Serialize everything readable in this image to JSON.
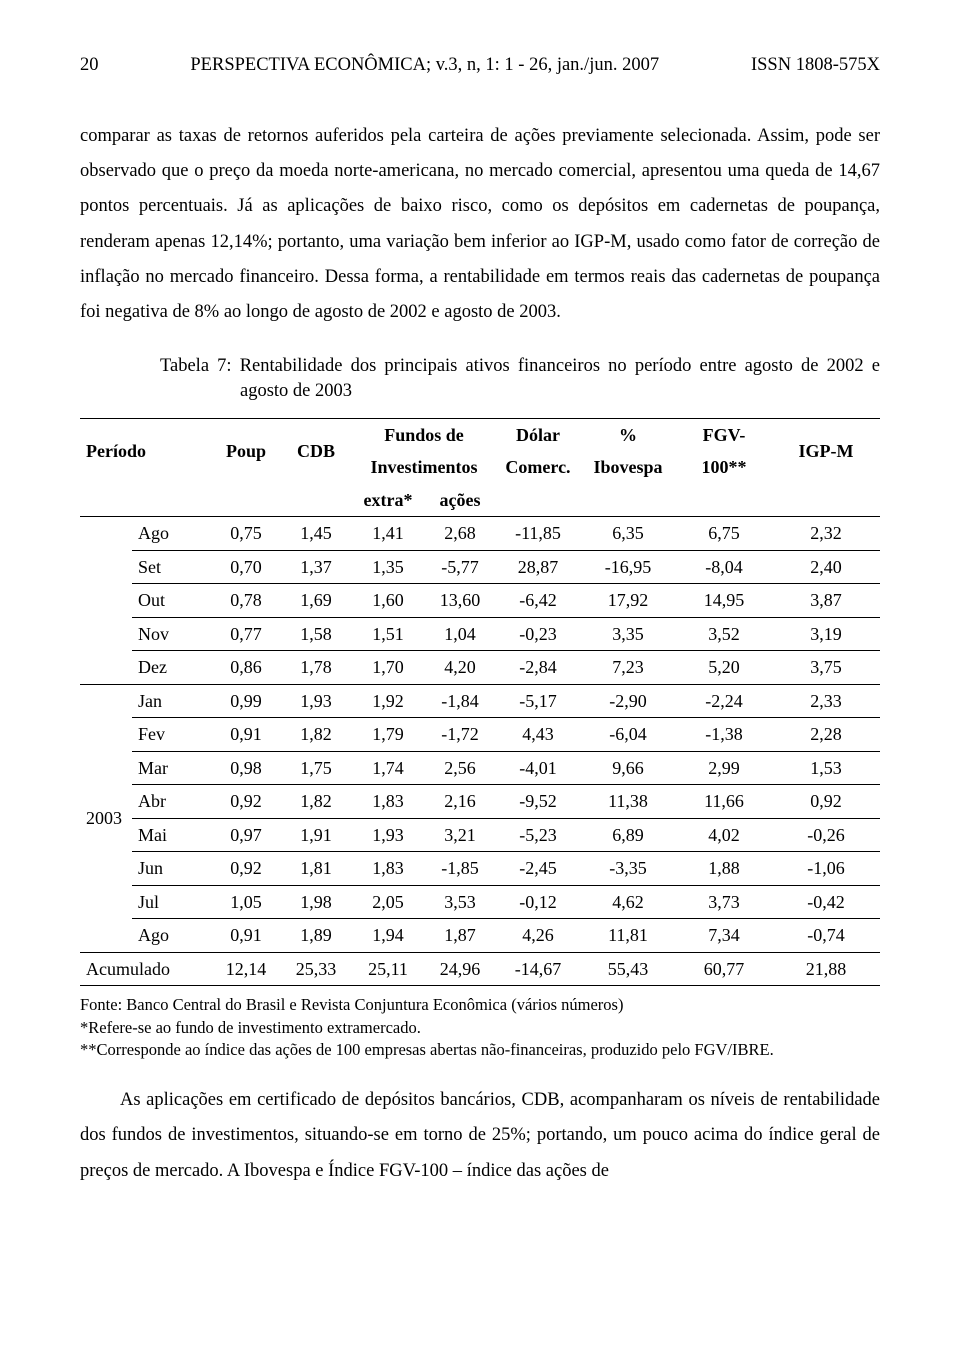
{
  "header": {
    "page_number": "20",
    "journal": "PERSPECTIVA ECONÔMICA; v.3, n, 1: 1 - 26, jan./jun. 2007",
    "issn": "ISSN 1808-575X"
  },
  "paragraphs": {
    "p1": "comparar as taxas de retornos auferidos pela carteira de ações previamente selecionada. Assim, pode ser observado que o preço da moeda norte-americana, no mercado comercial, apresentou uma queda de 14,67 pontos percentuais. Já as aplicações de baixo risco, como os depósitos em cadernetas de poupança, renderam apenas 12,14%; portanto, uma variação bem inferior ao IGP-M, usado como fator de correção de inflação no mercado financeiro. Dessa forma, a rentabilidade em termos reais das cadernetas de poupança foi negativa de 8% ao longo de agosto de 2002 e agosto de 2003.",
    "caption": "Tabela 7: Rentabilidade dos principais ativos financeiros no período entre agosto de 2002 e agosto de 2003",
    "p2": "As aplicações em certificado de depósitos bancários, CDB, acompanharam os níveis de rentabilidade dos fundos de investimentos, situando-se em torno de 25%; portando, um pouco acima do índice geral de preços de mercado. A Ibovespa e Índice FGV-100 – índice das ações de"
  },
  "table": {
    "col_widths": {
      "year": "6.5%",
      "month": "10%",
      "poup": "8.5%",
      "cdb": "9%",
      "extra": "9%",
      "acoes": "9%",
      "dolar": "10.5%",
      "ibov": "12%",
      "fgv": "12%",
      "igpm": "13.5%"
    },
    "headers": {
      "periodo": "Período",
      "poup": "Poup",
      "cdb": "CDB",
      "fundos_top": "Fundos de",
      "fundos_mid": "Investimentos",
      "extra": "extra*",
      "acoes": "ações",
      "dolar_top": "Dólar",
      "dolar_mid": "Comerc.",
      "ibov_top": "%",
      "ibov_mid": "Ibovespa",
      "fgv_top": "FGV-",
      "fgv_mid": "100**",
      "igpm": "IGP-M"
    },
    "year_label": "2003",
    "rows": [
      {
        "m": "Ago",
        "poup": "0,75",
        "cdb": "1,45",
        "extra": "1,41",
        "acoes": "2,68",
        "dolar": "-11,85",
        "ibov": "6,35",
        "fgv": "6,75",
        "igpm": "2,32"
      },
      {
        "m": "Set",
        "poup": "0,70",
        "cdb": "1,37",
        "extra": "1,35",
        "acoes": "-5,77",
        "dolar": "28,87",
        "ibov": "-16,95",
        "fgv": "-8,04",
        "igpm": "2,40"
      },
      {
        "m": "Out",
        "poup": "0,78",
        "cdb": "1,69",
        "extra": "1,60",
        "acoes": "13,60",
        "dolar": "-6,42",
        "ibov": "17,92",
        "fgv": "14,95",
        "igpm": "3,87"
      },
      {
        "m": "Nov",
        "poup": "0,77",
        "cdb": "1,58",
        "extra": "1,51",
        "acoes": "1,04",
        "dolar": "-0,23",
        "ibov": "3,35",
        "fgv": "3,52",
        "igpm": "3,19"
      },
      {
        "m": "Dez",
        "poup": "0,86",
        "cdb": "1,78",
        "extra": "1,70",
        "acoes": "4,20",
        "dolar": "-2,84",
        "ibov": "7,23",
        "fgv": "5,20",
        "igpm": "3,75"
      },
      {
        "m": "Jan",
        "poup": "0,99",
        "cdb": "1,93",
        "extra": "1,92",
        "acoes": "-1,84",
        "dolar": "-5,17",
        "ibov": "-2,90",
        "fgv": "-2,24",
        "igpm": "2,33"
      },
      {
        "m": "Fev",
        "poup": "0,91",
        "cdb": "1,82",
        "extra": "1,79",
        "acoes": "-1,72",
        "dolar": "4,43",
        "ibov": "-6,04",
        "fgv": "-1,38",
        "igpm": "2,28"
      },
      {
        "m": "Mar",
        "poup": "0,98",
        "cdb": "1,75",
        "extra": "1,74",
        "acoes": "2,56",
        "dolar": "-4,01",
        "ibov": "9,66",
        "fgv": "2,99",
        "igpm": "1,53"
      },
      {
        "m": "Abr",
        "poup": "0,92",
        "cdb": "1,82",
        "extra": "1,83",
        "acoes": "2,16",
        "dolar": "-9,52",
        "ibov": "11,38",
        "fgv": "11,66",
        "igpm": "0,92"
      },
      {
        "m": "Mai",
        "poup": "0,97",
        "cdb": "1,91",
        "extra": "1,93",
        "acoes": "3,21",
        "dolar": "-5,23",
        "ibov": "6,89",
        "fgv": "4,02",
        "igpm": "-0,26"
      },
      {
        "m": "Jun",
        "poup": "0,92",
        "cdb": "1,81",
        "extra": "1,83",
        "acoes": "-1,85",
        "dolar": "-2,45",
        "ibov": "-3,35",
        "fgv": "1,88",
        "igpm": "-1,06"
      },
      {
        "m": "Jul",
        "poup": "1,05",
        "cdb": "1,98",
        "extra": "2,05",
        "acoes": "3,53",
        "dolar": "-0,12",
        "ibov": "4,62",
        "fgv": "3,73",
        "igpm": "-0,42"
      },
      {
        "m": "Ago",
        "poup": "0,91",
        "cdb": "1,89",
        "extra": "1,94",
        "acoes": "1,87",
        "dolar": "4,26",
        "ibov": "11,81",
        "fgv": "7,34",
        "igpm": "-0,74"
      }
    ],
    "accum": {
      "label": "Acumulado",
      "poup": "12,14",
      "cdb": "25,33",
      "extra": "25,11",
      "acoes": "24,96",
      "dolar": "-14,67",
      "ibov": "55,43",
      "fgv": "60,77",
      "igpm": "21,88"
    }
  },
  "footnotes": {
    "f1": "Fonte: Banco Central do Brasil e Revista Conjuntura Econômica (vários números)",
    "f2": "*Refere-se ao fundo de investimento extramercado.",
    "f3": "**Corresponde ao índice das ações de 100 empresas abertas não-financeiras, produzido pelo FGV/IBRE."
  }
}
